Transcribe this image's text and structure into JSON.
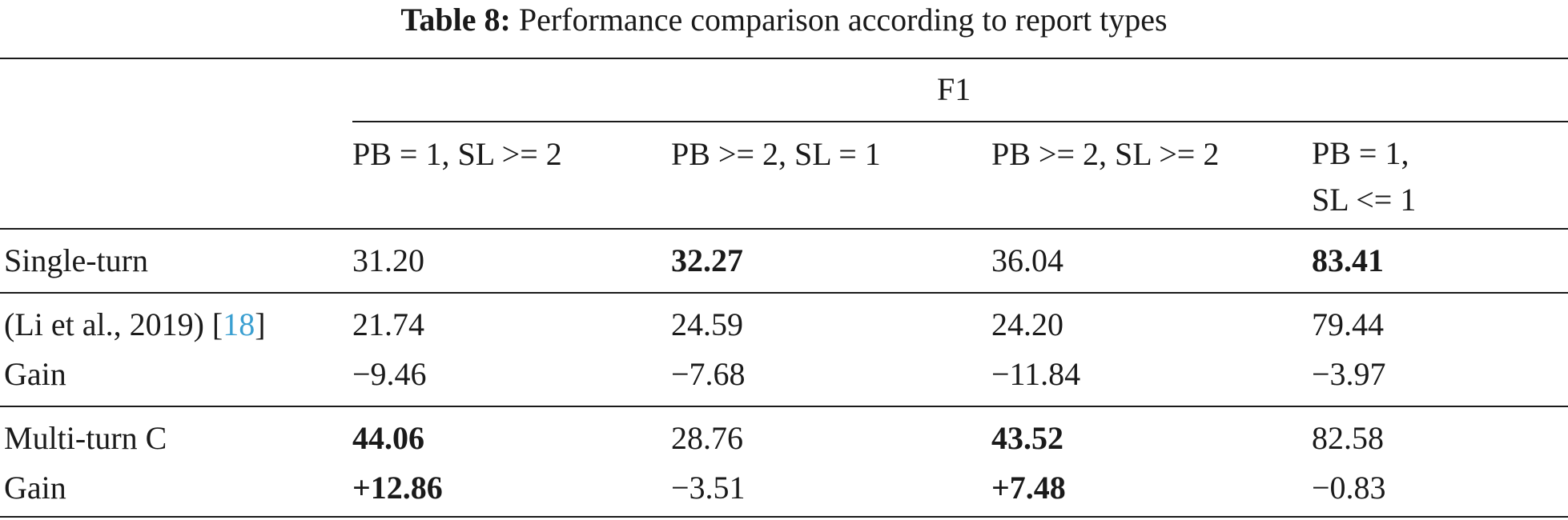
{
  "caption": {
    "label": "Table 8:",
    "text": "Performance comparison according to report types"
  },
  "table": {
    "group_header": "F1",
    "columns": [
      {
        "line1": "PB = 1, SL >= 2",
        "line2": ""
      },
      {
        "line1": "PB >= 2, SL = 1",
        "line2": ""
      },
      {
        "line1": "PB >= 2, SL >= 2",
        "line2": ""
      },
      {
        "line1": "PB = 1,",
        "line2": "SL <= 1"
      }
    ],
    "rows": [
      {
        "label": "Single-turn",
        "values": [
          "31.20",
          "32.27",
          "36.04",
          "83.41"
        ],
        "bold": [
          false,
          true,
          false,
          true
        ]
      },
      {
        "label": "(Li et al., 2019) [",
        "ref": "18",
        "label_tail": "]",
        "values": [
          "21.74",
          "24.59",
          "24.20",
          "79.44"
        ],
        "bold": [
          false,
          false,
          false,
          false
        ]
      },
      {
        "label": "Gain",
        "values": [
          "−9.46",
          "−7.68",
          "−11.84",
          "−3.97"
        ],
        "bold": [
          false,
          false,
          false,
          false
        ]
      },
      {
        "label": "Multi-turn C",
        "values": [
          "44.06",
          "28.76",
          "43.52",
          "82.58"
        ],
        "bold": [
          true,
          false,
          true,
          false
        ]
      },
      {
        "label": "Gain",
        "values": [
          "+12.86",
          "−3.51",
          "+7.48",
          "−0.83"
        ],
        "bold": [
          true,
          false,
          true,
          false
        ]
      }
    ]
  }
}
